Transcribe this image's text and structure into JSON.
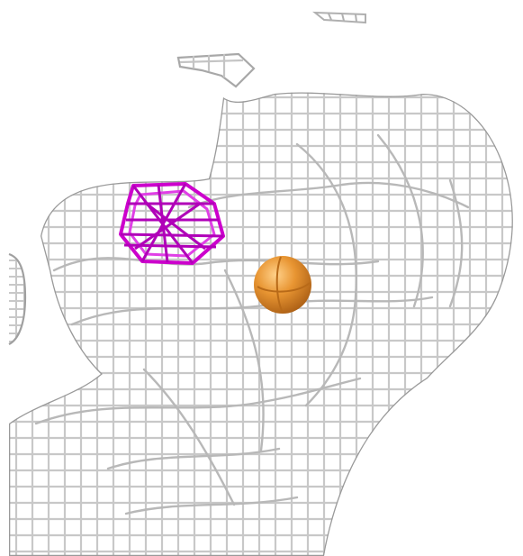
{
  "scene": {
    "background": "#ffffff",
    "mesh_color": "#c8c8c8",
    "mesh_shadow": "#8f8f8f",
    "magenta_color": "#cc00cc",
    "sphere_color": "#e0902e",
    "objects": [
      "electron-density-mesh",
      "magenta-density-cage",
      "orange-atom-sphere"
    ]
  }
}
